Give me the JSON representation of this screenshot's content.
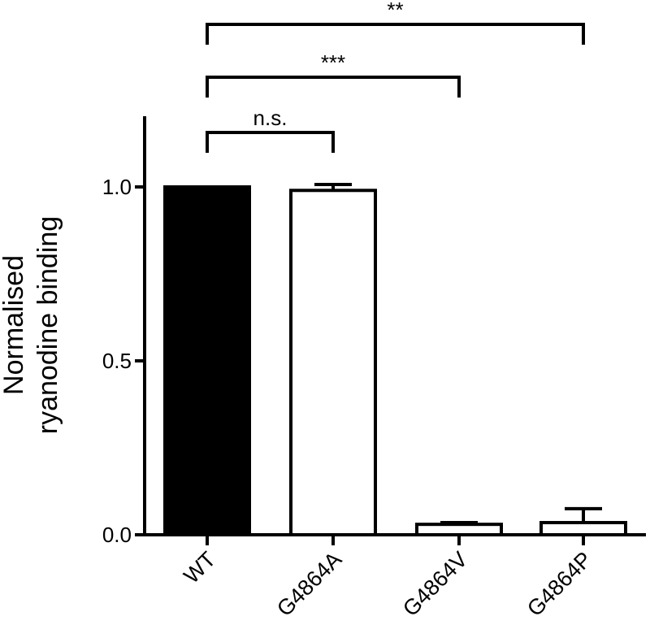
{
  "chart_data": {
    "type": "bar",
    "title": "",
    "xlabel": "",
    "ylabel_lines": [
      "Normalised",
      "ryanodine binding"
    ],
    "categories": [
      "WT",
      "G4864A",
      "G4864V",
      "G4864P"
    ],
    "values": [
      1.0,
      0.99,
      0.03,
      0.035
    ],
    "errors": [
      0.0,
      0.017,
      0.005,
      0.04
    ],
    "fills": [
      "#000000",
      "#ffffff",
      "#ffffff",
      "#ffffff"
    ],
    "ylim": [
      0,
      1.2
    ],
    "yticks": [
      0.0,
      0.5,
      1.0
    ],
    "ytick_labels": [
      "0.0",
      "0.5",
      "1.0"
    ],
    "significance": [
      {
        "from": 0,
        "to": 1,
        "label": "n.s."
      },
      {
        "from": 0,
        "to": 2,
        "label": "***"
      },
      {
        "from": 0,
        "to": 3,
        "label": "**"
      }
    ]
  }
}
